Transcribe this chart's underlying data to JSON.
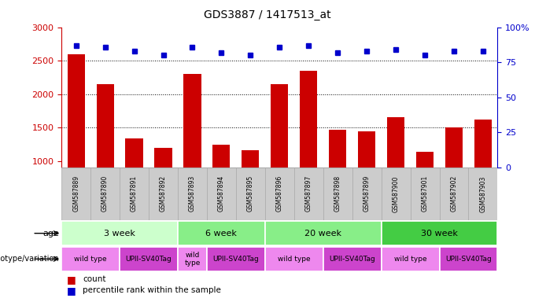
{
  "title": "GDS3887 / 1417513_at",
  "samples": [
    "GSM587889",
    "GSM587890",
    "GSM587891",
    "GSM587892",
    "GSM587893",
    "GSM587894",
    "GSM587895",
    "GSM587896",
    "GSM587897",
    "GSM587898",
    "GSM587899",
    "GSM587900",
    "GSM587901",
    "GSM587902",
    "GSM587903"
  ],
  "counts": [
    2600,
    2150,
    1340,
    1200,
    2300,
    1240,
    1160,
    2150,
    2350,
    1470,
    1440,
    1650,
    1140,
    1500,
    1620
  ],
  "percentile_ranks": [
    87,
    86,
    83,
    80,
    86,
    82,
    80,
    86,
    87,
    82,
    83,
    84,
    80,
    83,
    83
  ],
  "bar_color": "#cc0000",
  "dot_color": "#0000cc",
  "ylim_left": [
    900,
    3000
  ],
  "ylim_right": [
    0,
    100
  ],
  "yticks_left": [
    1000,
    1500,
    2000,
    2500,
    3000
  ],
  "yticks_right": [
    0,
    25,
    50,
    75,
    100
  ],
  "grid_dotted_vals": [
    1500,
    2000,
    2500
  ],
  "age_groups": [
    {
      "label": "3 week",
      "start": 0,
      "end": 4,
      "color": "#ccffcc"
    },
    {
      "label": "6 week",
      "start": 4,
      "end": 7,
      "color": "#88ee88"
    },
    {
      "label": "20 week",
      "start": 7,
      "end": 11,
      "color": "#88ee88"
    },
    {
      "label": "30 week",
      "start": 11,
      "end": 15,
      "color": "#44cc44"
    }
  ],
  "genotype_groups": [
    {
      "label": "wild type",
      "start": 0,
      "end": 2,
      "color": "#ee88ee"
    },
    {
      "label": "UPII-SV40Tag",
      "start": 2,
      "end": 4,
      "color": "#cc44cc"
    },
    {
      "label": "wild\ntype",
      "start": 4,
      "end": 5,
      "color": "#ee88ee"
    },
    {
      "label": "UPII-SV40Tag",
      "start": 5,
      "end": 7,
      "color": "#cc44cc"
    },
    {
      "label": "wild type",
      "start": 7,
      "end": 9,
      "color": "#ee88ee"
    },
    {
      "label": "UPII-SV40Tag",
      "start": 9,
      "end": 11,
      "color": "#cc44cc"
    },
    {
      "label": "wild type",
      "start": 11,
      "end": 13,
      "color": "#ee88ee"
    },
    {
      "label": "UPII-SV40Tag",
      "start": 13,
      "end": 15,
      "color": "#cc44cc"
    }
  ],
  "age_row_label": "age",
  "genotype_row_label": "genotype/variation",
  "legend_count_label": "count",
  "legend_pct_label": "percentile rank within the sample",
  "left_axis_color": "#cc0000",
  "right_axis_color": "#0000cc",
  "bg_color": "#ffffff",
  "sample_box_color": "#cccccc",
  "sample_box_edge": "#aaaaaa"
}
